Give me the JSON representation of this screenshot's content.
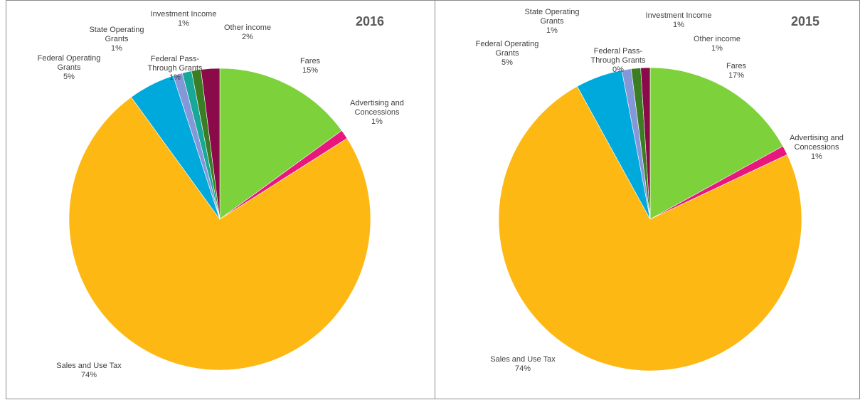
{
  "chart_data": [
    {
      "type": "pie",
      "title": "2016",
      "categories": [
        "Fares",
        "Advertising and Concessions",
        "Sales and Use Tax",
        "Federal Operating Grants",
        "State Operating Grants",
        "Federal Pass-Through Grants",
        "Investment Income",
        "Other income"
      ],
      "values": [
        15,
        1,
        74,
        5,
        1,
        1,
        1,
        2
      ],
      "value_labels": [
        "15%",
        "1%",
        "74%",
        "5%",
        "1%",
        "1%",
        "1%",
        "2%"
      ],
      "colors": [
        "#7dd13b",
        "#e8177e",
        "#fdb813",
        "#00a9dc",
        "#8497d8",
        "#17a89a",
        "#3b7d23",
        "#8b0a4a"
      ]
    },
    {
      "type": "pie",
      "title": "2015",
      "categories": [
        "Fares",
        "Advertising and Concessions",
        "Sales and Use Tax",
        "Federal Operating Grants",
        "State Operating Grants",
        "Federal Pass-Through Grants",
        "Investment Income",
        "Other income"
      ],
      "values": [
        17,
        1,
        74,
        5,
        1,
        0,
        1,
        1
      ],
      "value_labels": [
        "17%",
        "1%",
        "74%",
        "5%",
        "1%",
        "0%",
        "1%",
        "1%"
      ],
      "colors": [
        "#7dd13b",
        "#e8177e",
        "#fdb813",
        "#00a9dc",
        "#8497d8",
        "#17a89a",
        "#3b7d23",
        "#8b0a4a"
      ]
    }
  ]
}
